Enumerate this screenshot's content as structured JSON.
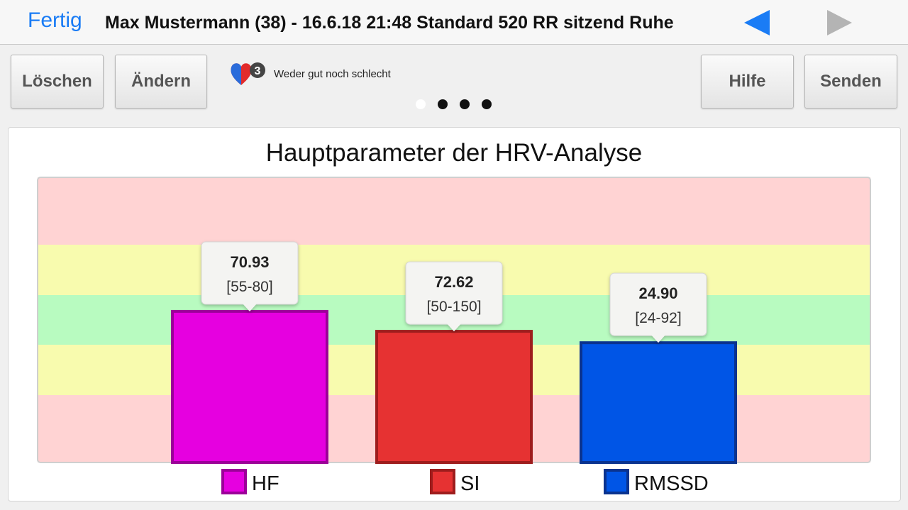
{
  "navbar": {
    "done_label": "Fertig",
    "title": "Max Mustermann (38) - 16.6.18 21:48 Standard 520 RR sitzend Ruhe",
    "prev_icon": "triangle-left-icon",
    "next_icon": "triangle-right-icon",
    "accent_color": "#1a7cf5",
    "disabled_color": "#b4b4b4"
  },
  "toolbar": {
    "delete_label": "Löschen",
    "edit_label": "Ändern",
    "help_label": "Hilfe",
    "send_label": "Senden"
  },
  "status": {
    "icon": "heart-rating-icon",
    "badge": "3",
    "label": "Weder gut noch schlecht"
  },
  "pager": {
    "pages": 4,
    "current": 1
  },
  "chart_data": {
    "type": "bar",
    "title": "Hauptparameter der HRV-Analyse",
    "background_bands": [
      {
        "color": "#ffd3d3"
      },
      {
        "color": "#f8fbae"
      },
      {
        "color": "#b8fbc0"
      },
      {
        "color": "#f8fbae"
      },
      {
        "color": "#ffd3d3"
      }
    ],
    "series": [
      {
        "name": "HF",
        "value": 70.93,
        "value_label": "70.93",
        "range_label": "[55-80]",
        "fill": "#e600e0",
        "stroke": "#9c0099",
        "level": 0.53
      },
      {
        "name": "SI",
        "value": 72.62,
        "value_label": "72.62",
        "range_label": "[50-150]",
        "fill": "#e63232",
        "stroke": "#9e1d1d",
        "level": 0.46
      },
      {
        "name": "RMSSD",
        "value": 24.9,
        "value_label": "24.90",
        "range_label": "[24-92]",
        "fill": "#0055e6",
        "stroke": "#0a338f",
        "level": 0.42
      }
    ],
    "legend": {
      "position": "bottom"
    },
    "grid": false
  }
}
